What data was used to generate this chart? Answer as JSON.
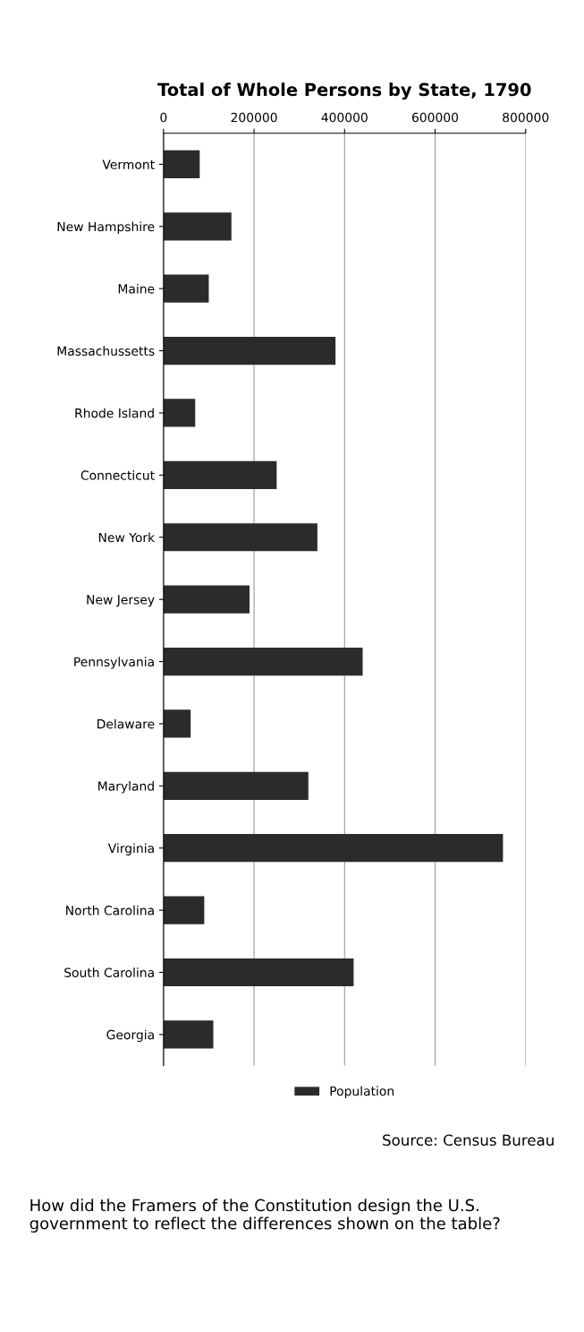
{
  "chart_data": {
    "type": "bar",
    "orientation": "horizontal",
    "title": "Total of Whole Persons by State, 1790",
    "categories": [
      "Vermont",
      "New Hampshire",
      "Maine",
      "Massachussetts",
      "Rhode Island",
      "Connecticut",
      "New York",
      "New Jersey",
      "Pennsylvania",
      "Delaware",
      "Maryland",
      "Virginia",
      "North Carolina",
      "South Carolina",
      "Georgia"
    ],
    "series": [
      {
        "name": "Population",
        "color": "#2b2b2b",
        "values": [
          80000,
          150000,
          100000,
          380000,
          70000,
          250000,
          340000,
          190000,
          440000,
          60000,
          320000,
          750000,
          90000,
          420000,
          110000
        ]
      }
    ],
    "xlim": [
      0,
      800000
    ],
    "xticks": [
      0,
      200000,
      400000,
      600000,
      800000
    ],
    "grid": "x",
    "legend": "bottom",
    "annotations": [
      "Source: Census Bureau",
      "How did the Framers of the Constitution design the U.S. government to reflect the differences shown on the table?"
    ]
  }
}
